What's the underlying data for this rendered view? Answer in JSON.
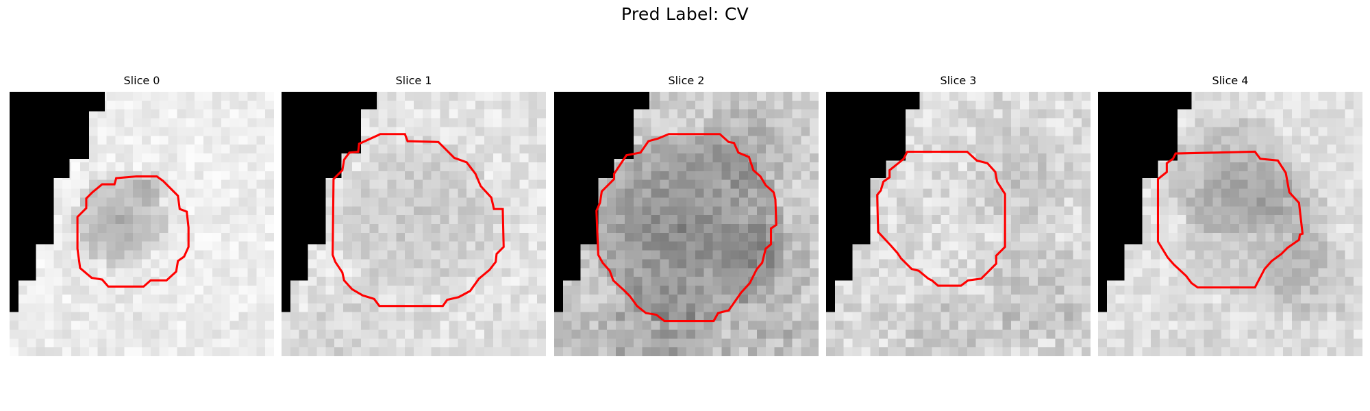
{
  "figure": {
    "title": "Pred Label: CV"
  },
  "panels": [
    {
      "label": "Slice 0"
    },
    {
      "label": "Slice 1"
    },
    {
      "label": "Slice 2"
    },
    {
      "label": "Slice 3"
    },
    {
      "label": "Slice 4"
    }
  ],
  "colors": {
    "contour": "#ff0000",
    "background_mask": "#000000"
  }
}
